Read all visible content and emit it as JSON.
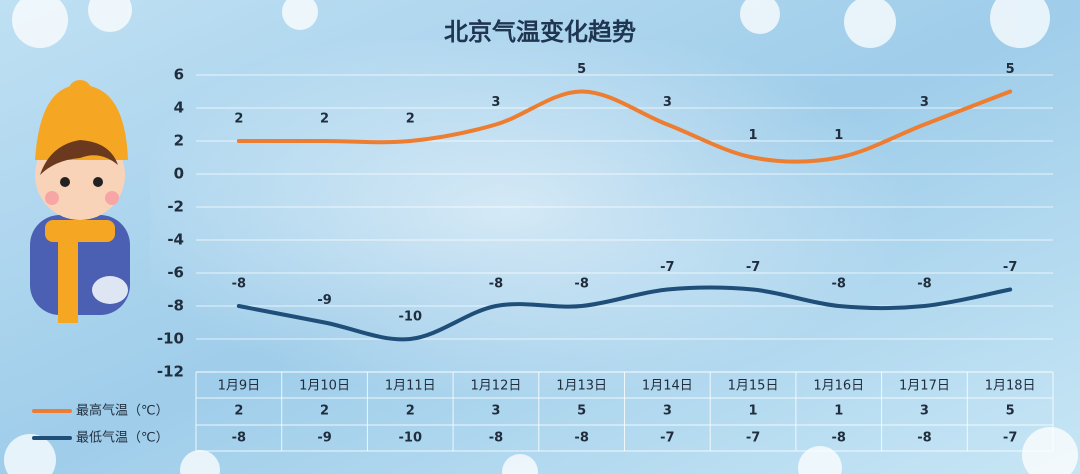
{
  "chart_data": {
    "type": "line",
    "title": "北京气温变化趋势",
    "categories": [
      "1月9日",
      "1月10日",
      "1月11日",
      "1月12日",
      "1月13日",
      "1月14日",
      "1月15日",
      "1月16日",
      "1月17日",
      "1月18日"
    ],
    "series": [
      {
        "name": "最高气温（℃）",
        "color": "#ed7d31",
        "values": [
          2,
          2,
          2,
          3,
          5,
          3,
          1,
          1,
          3,
          5
        ]
      },
      {
        "name": "最低气温（℃）",
        "color": "#1f4e79",
        "values": [
          -8,
          -9,
          -10,
          -8,
          -8,
          -7,
          -7,
          -8,
          -8,
          -7
        ]
      }
    ],
    "ylim": [
      -12,
      6
    ],
    "yticks": [
      -12,
      -10,
      -8,
      -6,
      -4,
      -2,
      0,
      2,
      4,
      6
    ],
    "grid": true,
    "smooth": true
  }
}
